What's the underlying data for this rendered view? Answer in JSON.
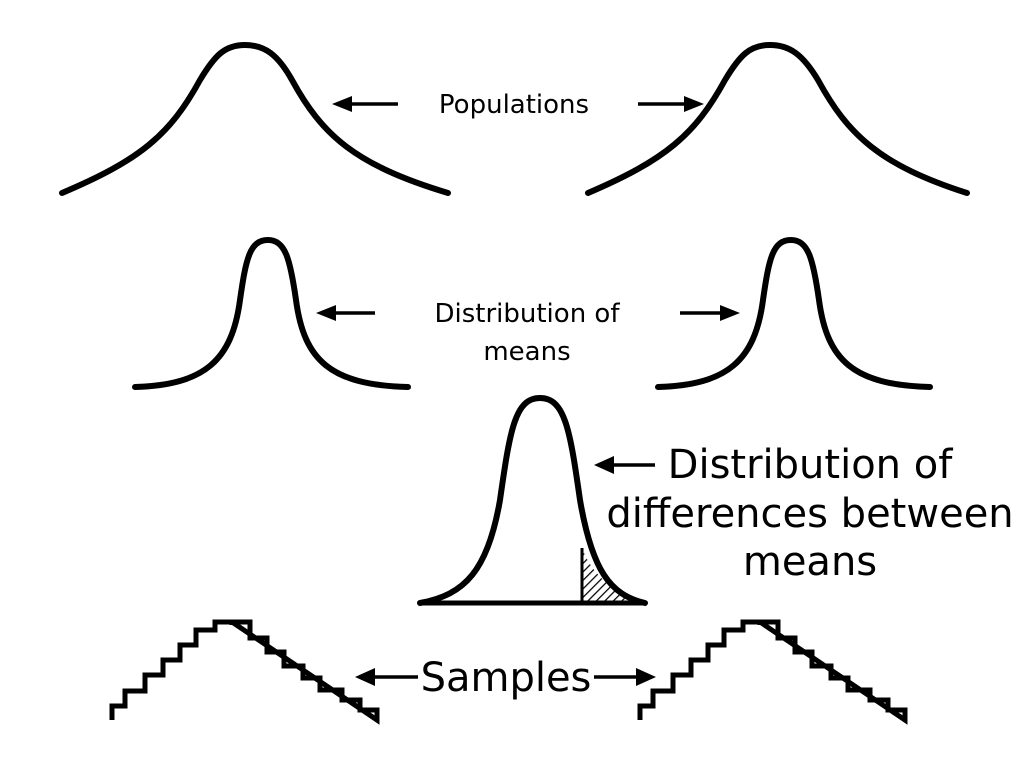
{
  "labels": {
    "populations": "Populations",
    "distribution_of_means": [
      "Distribution of",
      "means"
    ],
    "distribution_of_differences": [
      "Distribution of",
      "differences between",
      "means"
    ],
    "samples": "Samples"
  },
  "colors": {
    "ink": "#000000",
    "background": "#ffffff"
  }
}
